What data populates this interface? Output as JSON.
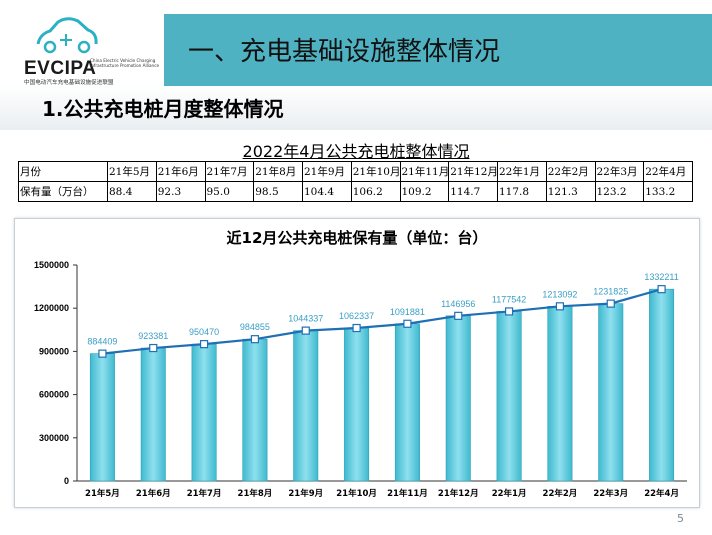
{
  "logo": {
    "name": "EVCIPA",
    "subtitle": "China Electric Vehicle Charging Infrastructure Promotion Alliance",
    "cn": "中国电动汽车充电基础设施促进联盟"
  },
  "header": {
    "title": "一、充电基础设施整体情况"
  },
  "section": {
    "title": "1.公共充电桩月度整体情况"
  },
  "table": {
    "title": "2022年4月公共充电桩整体情况",
    "row_header": "月份",
    "row_label": "保有量（万台）",
    "months": [
      "21年5月",
      "21年6月",
      "21年7月",
      "21年8月",
      "21年9月",
      "21年10月",
      "21年11月",
      "21年12月",
      "22年1月",
      "22年2月",
      "22年3月",
      "22年4月"
    ],
    "values": [
      "88.4",
      "92.3",
      "95.0",
      "98.5",
      "104.4",
      "106.2",
      "109.2",
      "114.7",
      "117.8",
      "121.3",
      "123.2",
      "133.2"
    ]
  },
  "chart_data": {
    "type": "bar",
    "title": "近12月公共充电桩保有量（单位：台）",
    "categories": [
      "21年5月",
      "21年6月",
      "21年7月",
      "21年8月",
      "21年9月",
      "21年10月",
      "21年11月",
      "21年12月",
      "22年1月",
      "22年2月",
      "22年3月",
      "22年4月"
    ],
    "series": [
      {
        "type": "bar",
        "values": [
          884409,
          923381,
          950470,
          984855,
          1044337,
          1062337,
          1091881,
          1146956,
          1177542,
          1213092,
          1231825,
          1332211
        ]
      },
      {
        "type": "line",
        "values": [
          884409,
          923381,
          950470,
          984855,
          1044337,
          1062337,
          1091881,
          1146956,
          1177542,
          1213092,
          1231825,
          1332211
        ]
      }
    ],
    "ylim": [
      0,
      1500000
    ],
    "yticks": [
      0,
      300000,
      600000,
      900000,
      1200000,
      1500000
    ],
    "grid": false,
    "colors": {
      "bar": "#6cd2e3",
      "bar_edge": "#2f9fb5",
      "line": "#1f6fb5",
      "label": "#3a9fc6"
    }
  },
  "footer": {
    "page": "5"
  }
}
